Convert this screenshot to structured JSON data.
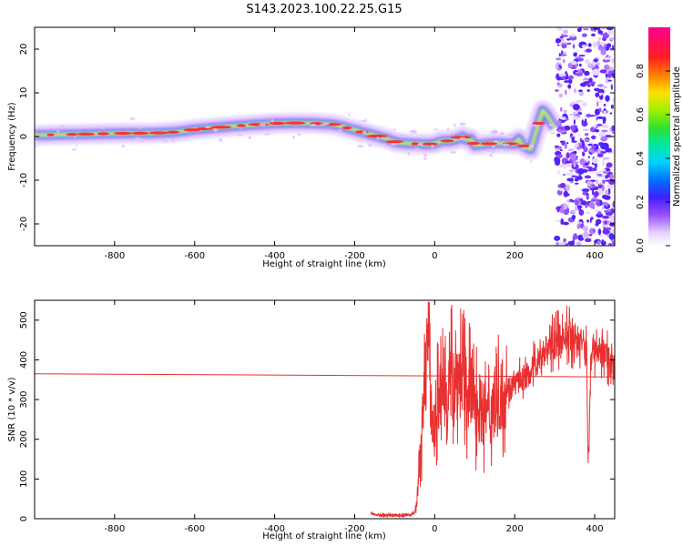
{
  "figure_title": "S143.2023.100.22.25.G15",
  "colors": {
    "snr_line": "#e83030",
    "reference_line": "#e83030",
    "spectrogram_scale": [
      "#ffffff",
      "#e0c8ff",
      "#b07cff",
      "#7a2cf0",
      "#3020ff",
      "#00a0ff",
      "#00e0e0",
      "#30e060",
      "#a0f000",
      "#ffe000",
      "#ff8000",
      "#ff2020",
      "#ff0080"
    ]
  },
  "chart_data": [
    {
      "type": "heatmap",
      "title": "S143.2023.100.22.25.G15",
      "xlabel": "Height of straight line (km)",
      "ylabel": "Frequency (Hz)",
      "xlim": [
        -1000,
        450
      ],
      "ylim": [
        -25,
        25
      ],
      "x_ticks": [
        -800,
        -600,
        -400,
        -200,
        0,
        200,
        400
      ],
      "y_ticks": [
        -20,
        -10,
        0,
        10,
        20
      ],
      "colorbar": {
        "label": "Normalized spectral amplitude",
        "range": [
          0.0,
          1.0
        ],
        "ticks": [
          0.0,
          0.2,
          0.4,
          0.6,
          0.8
        ]
      },
      "ridge": {
        "x": [
          -1000,
          -900,
          -800,
          -700,
          -650,
          -600,
          -550,
          -500,
          -450,
          -400,
          -350,
          -300,
          -260,
          -240,
          -220,
          -200,
          -180,
          -160,
          -140,
          -120,
          -100,
          -80,
          -60,
          -40,
          -20,
          0,
          20,
          40,
          60,
          70,
          80,
          90,
          100,
          120,
          140,
          160,
          180,
          200,
          210,
          220,
          240,
          250,
          260,
          270,
          280,
          290,
          300
        ],
        "freq": [
          0.3,
          0.5,
          0.7,
          0.8,
          1.0,
          1.6,
          2.0,
          2.4,
          2.7,
          3.0,
          3.1,
          3.0,
          2.8,
          2.5,
          2.0,
          1.5,
          1.0,
          0.5,
          0.0,
          -0.5,
          -1.2,
          -1.5,
          -1.6,
          -1.7,
          -1.8,
          -1.6,
          -1.0,
          -1.0,
          -0.5,
          0.0,
          -0.8,
          -0.5,
          -2.0,
          -1.8,
          -1.6,
          -1.5,
          -1.6,
          -1.7,
          -0.5,
          -2.0,
          -3.0,
          0.0,
          3.0,
          6.0,
          5.0,
          3.5,
          2.0
        ]
      },
      "noise_region_x": [
        305,
        450
      ]
    },
    {
      "type": "line",
      "title": "",
      "xlabel": "Height of straight line (km)",
      "ylabel": "SNR (10 * v/v)",
      "xlim": [
        -1000,
        450
      ],
      "ylim": [
        0,
        550
      ],
      "x_ticks": [
        -800,
        -600,
        -400,
        -200,
        0,
        200,
        400
      ],
      "y_ticks": [
        0,
        100,
        200,
        300,
        400,
        500
      ],
      "reference_line": {
        "x": [
          -1000,
          450
        ],
        "y": [
          365,
          357
        ]
      },
      "series": [
        {
          "x": [
            -160,
            -150,
            -120,
            -100,
            -80,
            -60,
            -50,
            -45,
            -40,
            -35,
            -30,
            -25,
            -20,
            -15,
            -10,
            -5,
            0,
            5,
            10,
            20,
            30,
            40,
            50,
            60,
            70,
            80,
            100,
            120,
            140,
            160,
            180,
            200,
            220,
            240,
            260,
            280,
            300,
            310,
            320,
            340,
            360,
            370,
            375,
            380,
            383,
            386,
            390,
            400,
            420,
            440,
            450
          ],
          "y": [
            15,
            10,
            8,
            10,
            8,
            10,
            15,
            40,
            100,
            180,
            250,
            330,
            420,
            520,
            300,
            240,
            220,
            280,
            300,
            320,
            330,
            340,
            350,
            360,
            350,
            330,
            300,
            270,
            260,
            300,
            330,
            340,
            350,
            370,
            400,
            430,
            440,
            450,
            455,
            460,
            450,
            445,
            430,
            420,
            160,
            180,
            420,
            430,
            420,
            400,
            380
          ]
        }
      ]
    }
  ]
}
